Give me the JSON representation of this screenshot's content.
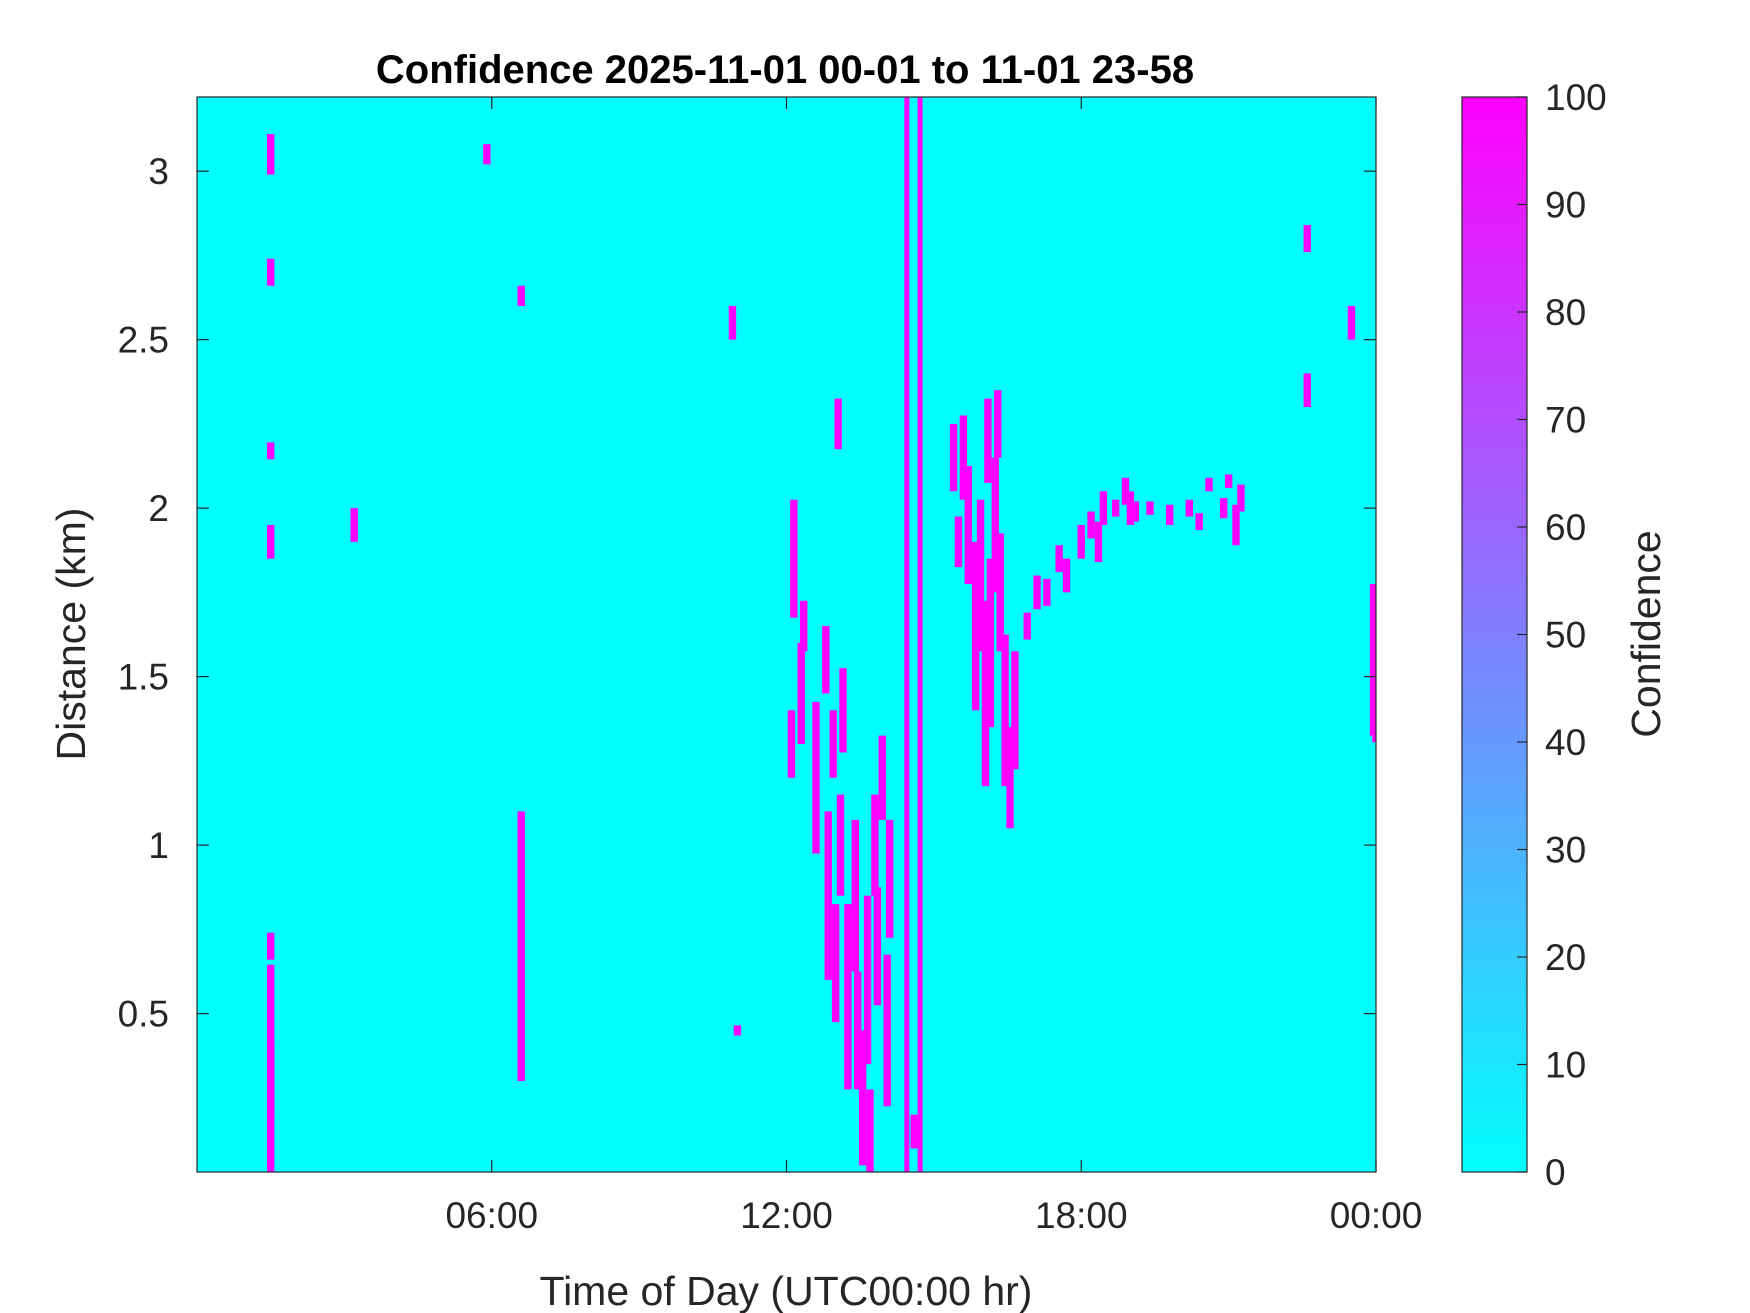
{
  "chart_data": {
    "type": "heatmap",
    "title": "Confidence 2025-11-01 00-01 to 11-01 23-58",
    "xlabel": "Time of Day (UTC00:00 hr)",
    "ylabel": "Distance (km)",
    "xlim_hours": [
      0,
      24
    ],
    "ylim": [
      0.03,
      3.22
    ],
    "x_ticks": [
      {
        "value": 6,
        "label": "06:00"
      },
      {
        "value": 12,
        "label": "12:00"
      },
      {
        "value": 18,
        "label": "18:00"
      },
      {
        "value": 24,
        "label": "00:00"
      }
    ],
    "y_ticks": [
      {
        "value": 0.5,
        "label": "0.5"
      },
      {
        "value": 1,
        "label": "1"
      },
      {
        "value": 1.5,
        "label": "1.5"
      },
      {
        "value": 2,
        "label": "2"
      },
      {
        "value": 2.5,
        "label": "2.5"
      },
      {
        "value": 3,
        "label": "3"
      }
    ],
    "background_value": 0,
    "colorbar": {
      "label": "Confidence",
      "min": 0,
      "max": 100,
      "ticks": [
        0,
        10,
        20,
        30,
        40,
        50,
        60,
        70,
        80,
        90,
        100
      ],
      "color_low": "#00FFFF",
      "color_high": "#FF00FF"
    },
    "full_height_lines_hours": [
      14.45,
      14.72
    ],
    "high_confidence_cells": [
      [
        1.5,
        0.12,
        1.05,
        100
      ],
      [
        1.5,
        0.3,
        0.22,
        100
      ],
      [
        1.5,
        0.7,
        0.08,
        100
      ],
      [
        1.5,
        1.9,
        0.1,
        100
      ],
      [
        1.5,
        2.17,
        0.05,
        100
      ],
      [
        1.5,
        2.7,
        0.08,
        100
      ],
      [
        1.5,
        3.05,
        0.12,
        100
      ],
      [
        5.9,
        3.05,
        0.06,
        100
      ],
      [
        6.6,
        2.63,
        0.06,
        100
      ],
      [
        6.6,
        0.7,
        0.8,
        100
      ],
      [
        3.2,
        1.95,
        0.1,
        100
      ],
      [
        11,
        0.45,
        0.03,
        100
      ],
      [
        10.9,
        2.55,
        0.1,
        100
      ],
      [
        12.15,
        1.85,
        0.35,
        100
      ],
      [
        12.3,
        1.45,
        0.3,
        100
      ],
      [
        12.1,
        1.3,
        0.2,
        100
      ],
      [
        12.35,
        1.65,
        0.15,
        100
      ],
      [
        12.6,
        1.2,
        0.45,
        100
      ],
      [
        12.85,
        0.85,
        0.5,
        100
      ],
      [
        13,
        0.65,
        0.35,
        100
      ],
      [
        13.1,
        1.0,
        0.3,
        100
      ],
      [
        13.25,
        0.55,
        0.55,
        100
      ],
      [
        13.4,
        0.85,
        0.45,
        100
      ],
      [
        13.45,
        0.45,
        0.35,
        100
      ],
      [
        13.55,
        0.25,
        0.4,
        100
      ],
      [
        13.65,
        0.6,
        0.5,
        100
      ],
      [
        13.7,
        0.15,
        0.25,
        100
      ],
      [
        13.8,
        1.0,
        0.3,
        100
      ],
      [
        13.85,
        0.7,
        0.35,
        100
      ],
      [
        13.95,
        1.2,
        0.25,
        100
      ],
      [
        14.05,
        0.45,
        0.45,
        100
      ],
      [
        14.1,
        0.9,
        0.35,
        100
      ],
      [
        13.15,
        1.4,
        0.25,
        100
      ],
      [
        12.95,
        1.3,
        0.2,
        100
      ],
      [
        13.05,
        2.25,
        0.15,
        100
      ],
      [
        12.8,
        1.55,
        0.2,
        100
      ],
      [
        15.6,
        2.15,
        0.25,
        100
      ],
      [
        15.7,
        1.95,
        0.35,
        100
      ],
      [
        15.85,
        1.65,
        0.5,
        100
      ],
      [
        15.95,
        1.8,
        0.45,
        100
      ],
      [
        16.05,
        1.45,
        0.55,
        100
      ],
      [
        16.15,
        1.6,
        0.5,
        100
      ],
      [
        16.25,
        1.95,
        0.4,
        100
      ],
      [
        16.35,
        1.75,
        0.35,
        100
      ],
      [
        16.45,
        1.4,
        0.45,
        100
      ],
      [
        16.55,
        1.2,
        0.3,
        100
      ],
      [
        16.65,
        1.4,
        0.35,
        100
      ],
      [
        16.1,
        2.2,
        0.25,
        100
      ],
      [
        16.3,
        2.25,
        0.2,
        100
      ],
      [
        15.4,
        2.15,
        0.2,
        100
      ],
      [
        15.5,
        1.9,
        0.15,
        100
      ],
      [
        16.9,
        1.65,
        0.08,
        100
      ],
      [
        17.1,
        1.75,
        0.1,
        100
      ],
      [
        17.3,
        1.75,
        0.08,
        100
      ],
      [
        17.55,
        1.85,
        0.08,
        100
      ],
      [
        17.7,
        1.8,
        0.1,
        100
      ],
      [
        18,
        1.9,
        0.1,
        100
      ],
      [
        18.2,
        1.95,
        0.08,
        100
      ],
      [
        18.35,
        1.9,
        0.12,
        100
      ],
      [
        18.45,
        2.0,
        0.1,
        100
      ],
      [
        18.7,
        2.0,
        0.05,
        100
      ],
      [
        18.9,
        2.05,
        0.08,
        100
      ],
      [
        19,
        2.0,
        0.1,
        100
      ],
      [
        19.1,
        1.99,
        0.06,
        100
      ],
      [
        19.4,
        2.0,
        0.04,
        100
      ],
      [
        19.8,
        1.98,
        0.06,
        100
      ],
      [
        20.2,
        2.0,
        0.05,
        100
      ],
      [
        20.4,
        1.96,
        0.05,
        100
      ],
      [
        20.6,
        2.07,
        0.04,
        100
      ],
      [
        20.9,
        2.0,
        0.06,
        100
      ],
      [
        21,
        2.08,
        0.04,
        100
      ],
      [
        21.15,
        1.95,
        0.12,
        100
      ],
      [
        21.25,
        2.03,
        0.08,
        100
      ],
      [
        23.95,
        1.55,
        0.45,
        100
      ],
      [
        24,
        1.33,
        0.05,
        100
      ],
      [
        14.6,
        0.15,
        0.1,
        100
      ],
      [
        22.6,
        2.35,
        0.1,
        100
      ],
      [
        22.6,
        2.8,
        0.08,
        100
      ],
      [
        23.5,
        2.55,
        0.1,
        100
      ]
    ]
  }
}
